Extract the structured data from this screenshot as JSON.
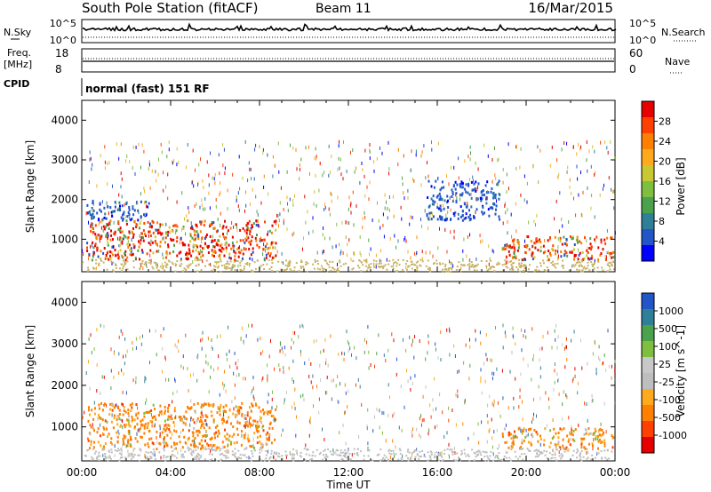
{
  "header": {
    "station": "South Pole Station (fitACF)",
    "beam": "Beam 11",
    "date": "16/Mar/2015"
  },
  "nsky_panel": {
    "left_label": "N.Sky",
    "right_label": "N.Search",
    "left_ticks": [
      "10^5",
      "10^0"
    ],
    "right_ticks": [
      "10^5",
      "10^0"
    ]
  },
  "freq_panel": {
    "left_label_1": "Freq.",
    "left_label_2": "[MHz]",
    "left_ticks": [
      "18",
      "8"
    ],
    "right_label": "Nave",
    "right_ticks": [
      "60",
      "0"
    ]
  },
  "cpid_panel": {
    "label": "CPID",
    "mode_text": "normal (fast) 151 RF"
  },
  "chart_data": [
    {
      "type": "heatmap",
      "title": "",
      "ylabel": "Slant Range [km]",
      "xlabel": "",
      "ylim": [
        180,
        4500
      ],
      "xlim": [
        0,
        24
      ],
      "yticks": [
        1000,
        2000,
        3000,
        4000
      ],
      "colorbar": {
        "label": "Power [dB]",
        "ticks": [
          "28",
          "24",
          "20",
          "16",
          "12",
          "8",
          "4"
        ],
        "colors": [
          "#0000ff",
          "#2255c8",
          "#2f7f96",
          "#4aa24a",
          "#7fbf3f",
          "#c8c832",
          "#ffaa1e",
          "#ff7f00",
          "#ff4000",
          "#e60000"
        ]
      },
      "regions": [
        {
          "t0": 0.2,
          "t1": 8.7,
          "r0": 500,
          "r1": 1500,
          "level": "high"
        },
        {
          "t0": 18.9,
          "t1": 23.9,
          "r0": 500,
          "r1": 1100,
          "level": "high"
        },
        {
          "t0": 15.5,
          "t1": 18.8,
          "r0": 1500,
          "r1": 2500,
          "level": "low"
        },
        {
          "t0": 0.2,
          "t1": 3.0,
          "r0": 1500,
          "r1": 2000,
          "level": "low"
        }
      ]
    },
    {
      "type": "heatmap",
      "title": "",
      "ylabel": "Slant Range [km]",
      "xlabel": "Time UT",
      "ylim": [
        180,
        4500
      ],
      "xlim": [
        0,
        24
      ],
      "yticks": [
        1000,
        2000,
        3000,
        4000
      ],
      "xticks": [
        "00:00",
        "04:00",
        "08:00",
        "12:00",
        "16:00",
        "20:00",
        "00:00"
      ],
      "colorbar": {
        "label": "Velocity [m s^-1]",
        "ticks": [
          "1000",
          "500",
          "100",
          "25",
          "-25",
          "-100",
          "-500",
          "-1000"
        ],
        "colors": [
          "#e60000",
          "#ff4000",
          "#ff7f00",
          "#ffaa1e",
          "#bebebe",
          "#c8c8c8",
          "#7fbf3f",
          "#4aa24a",
          "#2f7f96",
          "#2255c8"
        ]
      },
      "regions": [
        {
          "t0": 0.2,
          "t1": 8.7,
          "r0": 500,
          "r1": 1600,
          "level": "negative"
        },
        {
          "t0": 18.9,
          "t1": 23.9,
          "r0": 500,
          "r1": 1000,
          "level": "negative"
        }
      ]
    }
  ]
}
